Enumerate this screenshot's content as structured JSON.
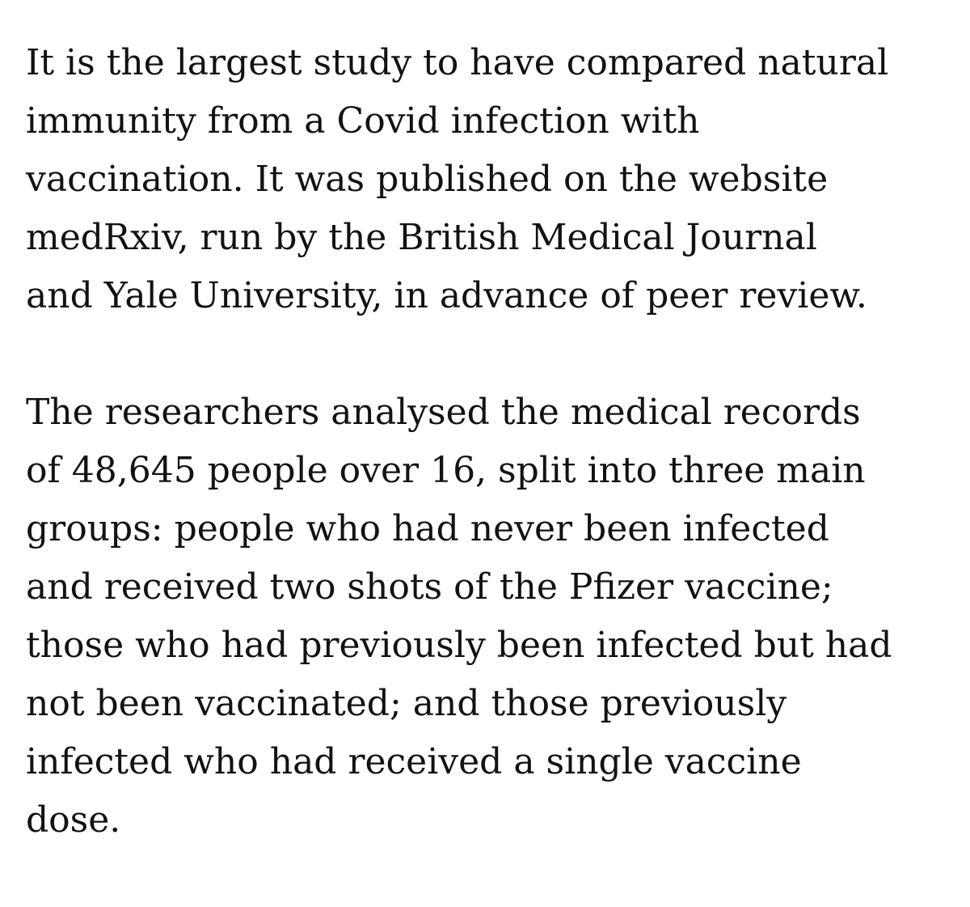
{
  "article": {
    "paragraphs": [
      {
        "lines": [
          "It is the largest study to have compared natural",
          "immunity from a Covid infection with",
          "vaccination. It was published on the website",
          "medRxiv, run by the British Medical Journal",
          "and Yale University, in advance of peer review."
        ]
      },
      {
        "lines": [
          "The researchers analysed the medical records",
          "of 48,645 people over 16, split into three main",
          "groups: people who had never been infected",
          "and received two shots of the Pfizer vaccine;",
          "those who had previously been infected but had",
          "not been vaccinated; and those previously",
          "infected who had received a single vaccine",
          "dose."
        ]
      }
    ]
  }
}
